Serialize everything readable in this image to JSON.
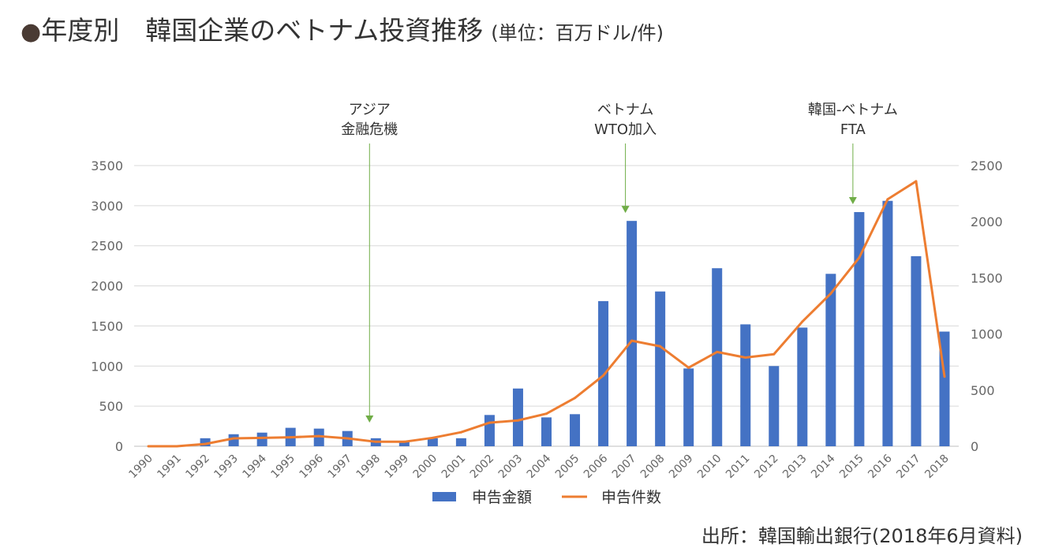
{
  "title": {
    "bullet": "●",
    "main": "年度別　韓国企業のベトナム投資推移",
    "unit": "(単位：百万ドル/件)"
  },
  "source": "出所：韓国輸出銀行(2018年6月資料)",
  "chart_data": {
    "type": "bar+line",
    "categories": [
      "1990",
      "1991",
      "1992",
      "1993",
      "1994",
      "1995",
      "1996",
      "1997",
      "1998",
      "1999",
      "2000",
      "2001",
      "2002",
      "2003",
      "2004",
      "2005",
      "2006",
      "2007",
      "2008",
      "2009",
      "2010",
      "2011",
      "2012",
      "2013",
      "2014",
      "2015",
      "2016",
      "2017",
      "2018"
    ],
    "series": [
      {
        "name": "申告金額",
        "type": "bar",
        "axis": "left",
        "color": "#4472c4",
        "values": [
          0,
          0,
          100,
          150,
          170,
          230,
          220,
          190,
          100,
          60,
          100,
          100,
          390,
          720,
          360,
          400,
          1810,
          2810,
          1930,
          970,
          2220,
          1520,
          1000,
          1480,
          2150,
          2920,
          3060,
          2370,
          1430
        ]
      },
      {
        "name": "申告件数",
        "type": "line",
        "axis": "right",
        "color": "#ed7d31",
        "values": [
          0,
          0,
          20,
          70,
          75,
          80,
          90,
          70,
          40,
          40,
          75,
          125,
          210,
          230,
          290,
          430,
          630,
          940,
          890,
          700,
          840,
          790,
          820,
          1110,
          1360,
          1680,
          2200,
          2360,
          620
        ]
      }
    ],
    "y_left": {
      "min": 0,
      "max": 3500,
      "ticks": [
        0,
        500,
        1000,
        1500,
        2000,
        2500,
        3000,
        3500
      ]
    },
    "y_right": {
      "min": 0,
      "max": 2500,
      "ticks": [
        0,
        500,
        1000,
        1500,
        2000,
        2500
      ]
    },
    "grid": true,
    "legend": "bottom",
    "annotations": [
      {
        "category": "1998",
        "lines": [
          "アジア",
          "金融危機"
        ],
        "color": "#70ad47"
      },
      {
        "category": "2007",
        "lines": [
          "ベトナム",
          "WTO加入"
        ],
        "color": "#70ad47"
      },
      {
        "category": "2015",
        "lines": [
          "韓国-ベトナム",
          "FTA"
        ],
        "color": "#70ad47"
      }
    ]
  }
}
